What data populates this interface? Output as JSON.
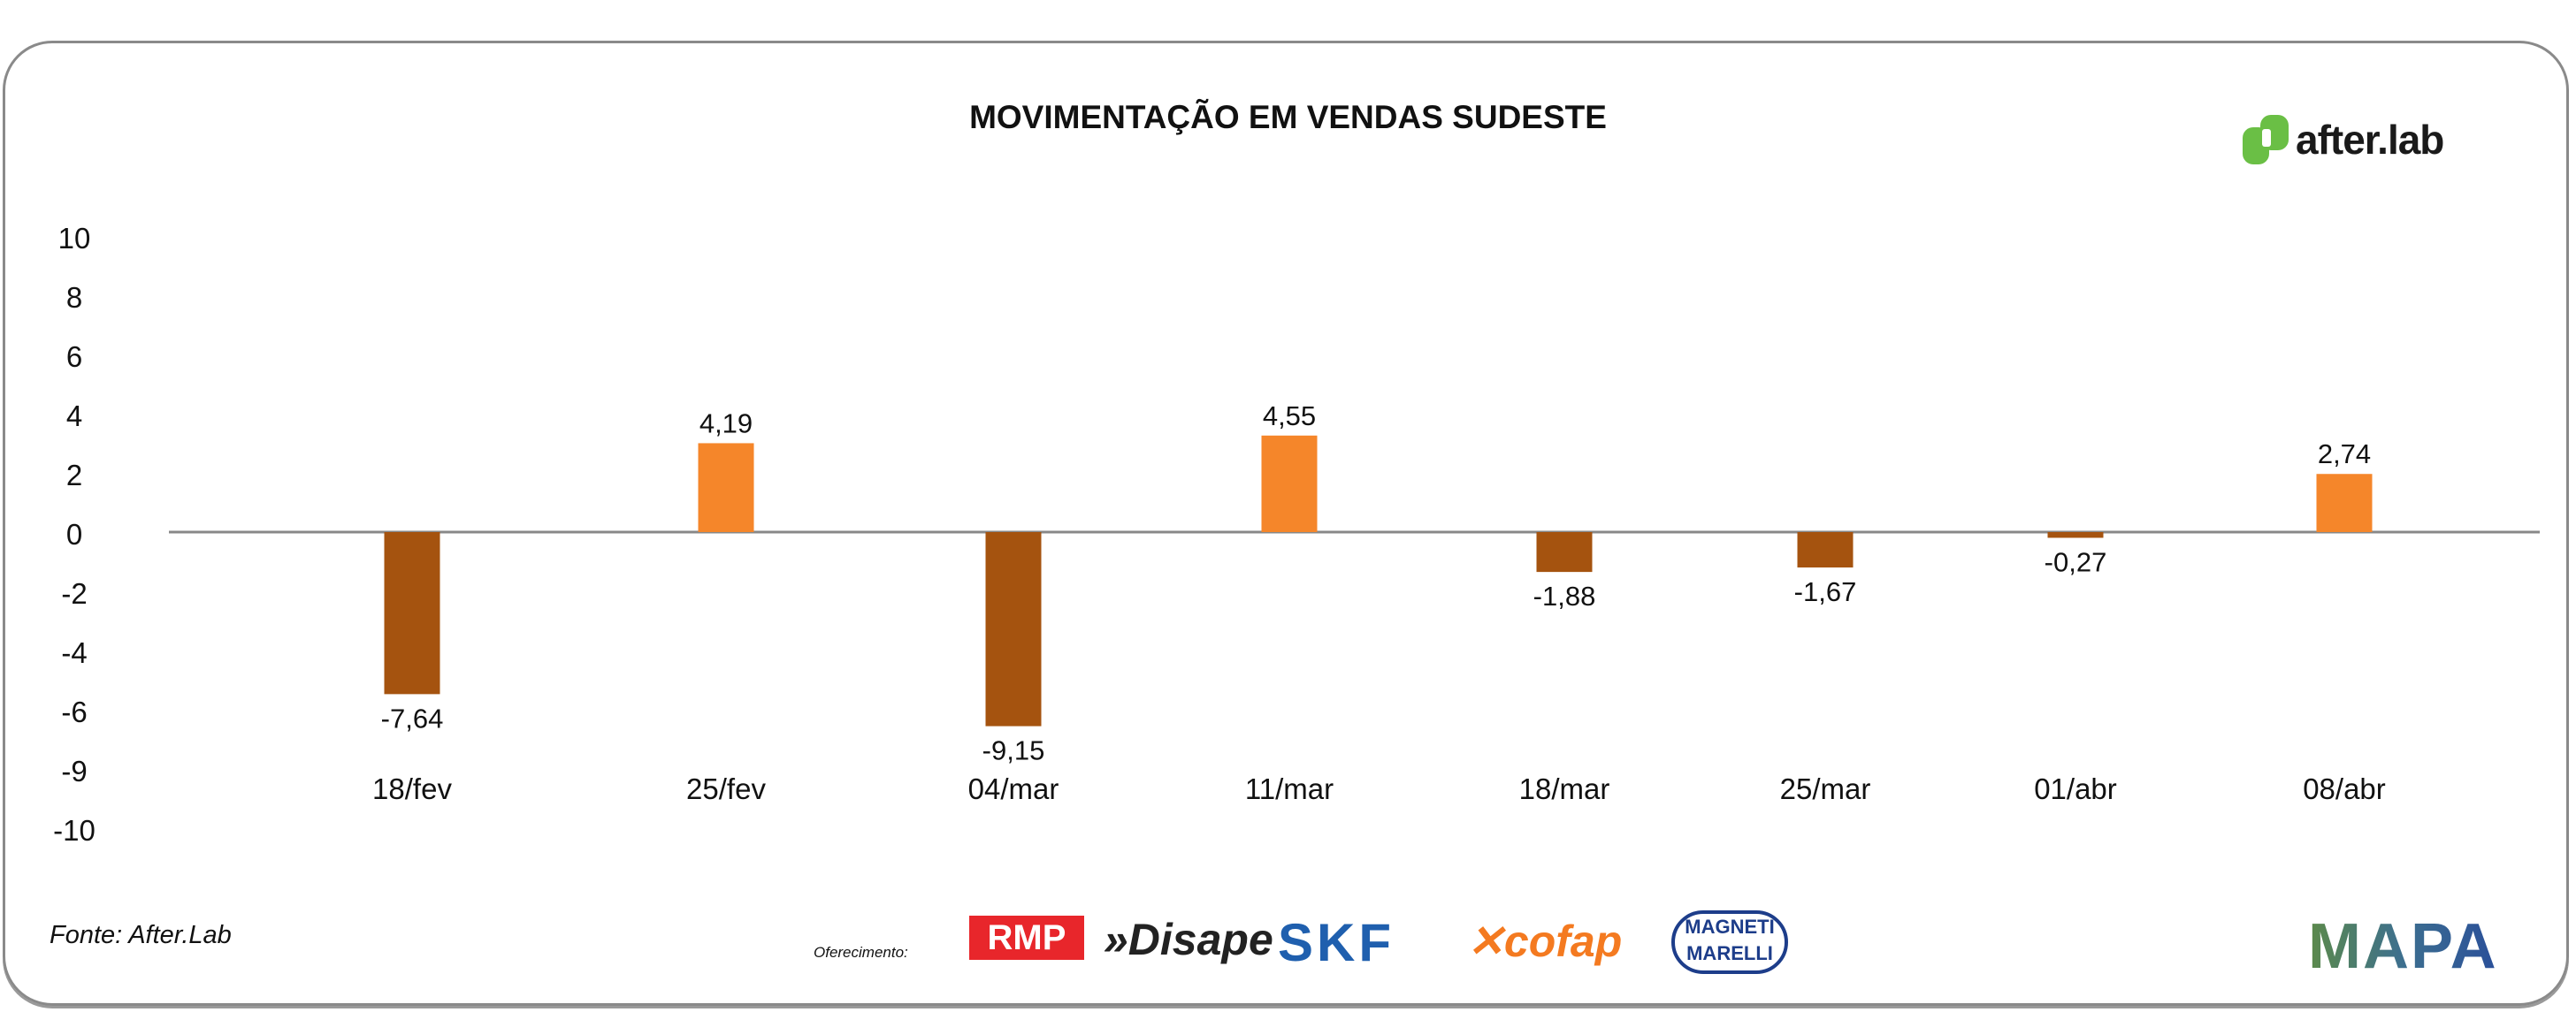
{
  "title": "MOVIMENTAÇÃO EM VENDAS SUDESTE",
  "brand_logo": "after.lab",
  "source": "Fonte: After.Lab",
  "sponsors_label": "Oferecimento:",
  "sponsor_logos": [
    "RMP",
    "Disape",
    "SKF",
    "cofap",
    "MAGNETI MARELLI",
    "MAPA"
  ],
  "colors": {
    "positive": "#F5862A",
    "negative": "#A5530F",
    "axis": "#888888",
    "brand_green": "#6ABF45"
  },
  "chart_data": {
    "type": "bar",
    "title": "MOVIMENTAÇÃO EM VENDAS SUDESTE",
    "categories": [
      "18/fev",
      "25/fev",
      "04/mar",
      "11/mar",
      "18/mar",
      "25/mar",
      "01/abr",
      "08/abr"
    ],
    "values": [
      -7.64,
      4.19,
      -9.15,
      4.55,
      -1.88,
      -1.67,
      -0.27,
      2.74
    ],
    "data_labels": [
      "-7,64",
      "4,19",
      "-9,15",
      "4,55",
      "-1,88",
      "-1,67",
      "-0,27",
      "2,74"
    ],
    "yticks": [
      "10",
      "8",
      "6",
      "4",
      "2",
      "0",
      "-2",
      "-4",
      "-6",
      "-9",
      "-10"
    ],
    "ylim": [
      -10,
      10
    ],
    "grid": false,
    "legend": "none"
  }
}
